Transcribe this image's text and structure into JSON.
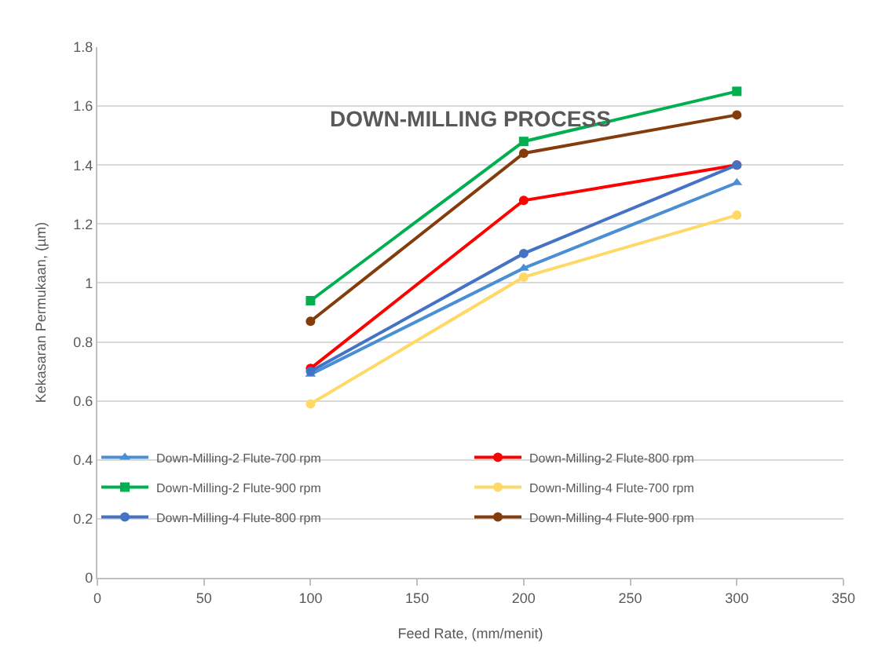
{
  "chart_data": {
    "type": "line",
    "title": "DOWN-MILLING PROCESS",
    "xlabel": "Feed Rate, (mm/menit)",
    "ylabel": "Kekasaran Permukaan, (µm)",
    "x": [
      100,
      200,
      300
    ],
    "series": [
      {
        "name": "Down-Milling-2 Flute-700 rpm",
        "color": "#4a8fd4",
        "marker": "triangle",
        "values": [
          0.69,
          1.05,
          1.34
        ]
      },
      {
        "name": "Down-Milling-2 Flute-800 rpm",
        "color": "#ff0000",
        "marker": "circle",
        "values": [
          0.71,
          1.28,
          1.4
        ]
      },
      {
        "name": "Down-Milling-2 Flute-900 rpm",
        "color": "#00b050",
        "marker": "square",
        "values": [
          0.94,
          1.48,
          1.65
        ]
      },
      {
        "name": "Down-Milling-4 Flute-700 rpm",
        "color": "#ffd966",
        "marker": "circle",
        "values": [
          0.59,
          1.02,
          1.23
        ]
      },
      {
        "name": "Down-Milling-4 Flute-800 rpm",
        "color": "#4472c4",
        "marker": "circle",
        "values": [
          0.7,
          1.1,
          1.4
        ]
      },
      {
        "name": "Down-Milling-4 Flute-900 rpm",
        "color": "#843c0c",
        "marker": "circle",
        "values": [
          0.87,
          1.44,
          1.57
        ]
      }
    ],
    "xlim": [
      0,
      350
    ],
    "xticks": [
      0,
      50,
      100,
      150,
      200,
      250,
      300,
      350
    ],
    "ylim": [
      0,
      1.8
    ],
    "yticks": [
      0,
      0.2,
      0.4,
      0.6,
      0.8,
      1,
      1.2,
      1.4,
      1.6,
      1.8
    ],
    "grid": "y",
    "legend": "bottom",
    "line_style": "solid"
  }
}
